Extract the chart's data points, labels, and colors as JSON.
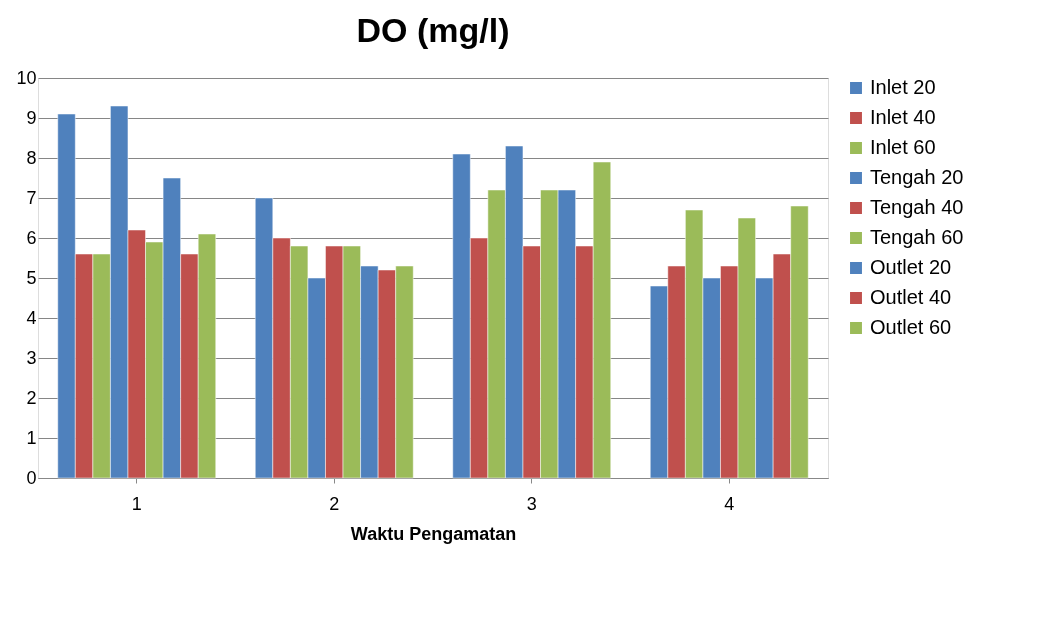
{
  "chart_data": {
    "type": "bar",
    "title": "DO (mg/l)",
    "xlabel": "Waktu Pengamatan",
    "categories": [
      "1",
      "2",
      "3",
      "4"
    ],
    "series": [
      {
        "name": "Inlet 20",
        "color": "#4f81bd",
        "values": [
          9.1,
          7.0,
          8.1,
          4.8
        ]
      },
      {
        "name": "Inlet 40",
        "color": "#c0504d",
        "values": [
          5.6,
          6.0,
          6.0,
          5.3
        ]
      },
      {
        "name": "Inlet 60",
        "color": "#9bbb59",
        "values": [
          5.6,
          5.8,
          7.2,
          6.7
        ]
      },
      {
        "name": "Tengah 20",
        "color": "#4f81bd",
        "values": [
          9.3,
          5.0,
          8.3,
          5.0
        ]
      },
      {
        "name": "Tengah 40",
        "color": "#c0504d",
        "values": [
          6.2,
          5.8,
          5.8,
          5.3
        ]
      },
      {
        "name": "Tengah 60",
        "color": "#9bbb59",
        "values": [
          5.9,
          5.8,
          7.2,
          6.5
        ]
      },
      {
        "name": "Outlet 20",
        "color": "#4f81bd",
        "values": [
          7.5,
          5.3,
          7.2,
          5.0
        ]
      },
      {
        "name": "Outlet 40",
        "color": "#c0504d",
        "values": [
          5.6,
          5.2,
          5.8,
          5.6
        ]
      },
      {
        "name": "Outlet 60",
        "color": "#9bbb59",
        "values": [
          6.1,
          5.3,
          7.9,
          6.8
        ]
      }
    ],
    "ylim": [
      0,
      10
    ],
    "yticks": [
      0,
      1,
      2,
      3,
      4,
      5,
      6,
      7,
      8,
      9,
      10
    ],
    "grid": "y",
    "legend": "right"
  }
}
